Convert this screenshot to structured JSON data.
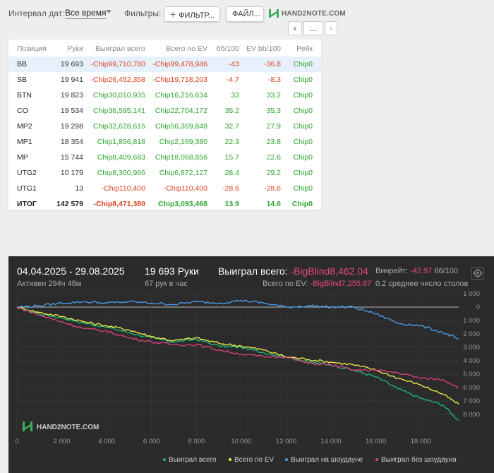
{
  "toolbar": {
    "date_interval_label": "Интервал дат:",
    "date_interval_value": "Все время",
    "filters_label": "Фильтры:",
    "filter_button": "ФИЛЬТР...",
    "file_button": "ФАЙЛ...",
    "brand": "HAND2NOTE.COM",
    "nav_prev": "‹",
    "nav_more": "...",
    "nav_next": "›"
  },
  "table": {
    "headers": [
      "Позиция",
      "Руки",
      "Выиграл всего",
      "Всего по EV",
      "бб/100",
      "EV bb/100",
      "Рейк"
    ],
    "rows": [
      {
        "pos": "BB",
        "hands": "19 693",
        "won": "-Chip99,710,780",
        "ev": "-Chip99,478,946",
        "bb100": "-43",
        "evbb100": "-36.8",
        "rake": "Chip0"
      },
      {
        "pos": "SB",
        "hands": "19 941",
        "won": "-Chip26,452,358",
        "ev": "-Chip19,718,203",
        "bb100": "-4.7",
        "evbb100": "-8.3",
        "rake": "Chip0"
      },
      {
        "pos": "BTN",
        "hands": "19 823",
        "won": "Chip30,010,935",
        "ev": "Chip16,216,634",
        "bb100": "33",
        "evbb100": "33.2",
        "rake": "Chip0"
      },
      {
        "pos": "CO",
        "hands": "19 534",
        "won": "Chip36,595,141",
        "ev": "Chip22,704,172",
        "bb100": "35.2",
        "evbb100": "35.3",
        "rake": "Chip0"
      },
      {
        "pos": "MP2",
        "hands": "19 298",
        "won": "Chip32,628,615",
        "ev": "Chip56,369,848",
        "bb100": "32.7",
        "evbb100": "27.9",
        "rake": "Chip0"
      },
      {
        "pos": "MP1",
        "hands": "18 354",
        "won": "Chip1,856,818",
        "ev": "Chip2,169,380",
        "bb100": "22.3",
        "evbb100": "23.8",
        "rake": "Chip0"
      },
      {
        "pos": "MP",
        "hands": "15 744",
        "won": "Chip8,409,683",
        "ev": "Chip18,068,856",
        "bb100": "15.7",
        "evbb100": "22.6",
        "rake": "Chip0"
      },
      {
        "pos": "UTG2",
        "hands": "10 179",
        "won": "Chip8,300,966",
        "ev": "Chip6,872,127",
        "bb100": "28.4",
        "evbb100": "29.2",
        "rake": "Chip0"
      },
      {
        "pos": "UTG1",
        "hands": "13",
        "won": "-Chip110,400",
        "ev": "-Chip110,400",
        "bb100": "-28.6",
        "evbb100": "-28.6",
        "rake": "Chip0"
      }
    ],
    "total": {
      "pos": "ИТОГ",
      "hands": "142 579",
      "won": "-Chip8,471,380",
      "ev": "Chip3,093,468",
      "bb100": "13.9",
      "evbb100": "14.6",
      "rake": "Chip0"
    }
  },
  "graph": {
    "date_range": "04.04.2025 - 29.08.2025",
    "active": "Активен 294ч 48м",
    "hands": "19 693 Руки",
    "hands_per_hour": "67 рук в час",
    "won_label": "Выиграл всего:",
    "won_value": "-BigBlind8,462.04",
    "ev_label": "Всего по EV:",
    "ev_value": "-BigBlind7,255.87",
    "winrate_label": "Винрейт:",
    "winrate_value": "-42.97",
    "winrate_unit": "66/100",
    "avg_table": "0.2 среднее число столов",
    "gear_icon": "gear-icon",
    "brand": "HAND2NOTE.COM"
  },
  "chart_data": {
    "type": "line",
    "xlim": [
      0,
      19693
    ],
    "ylim": [
      -9000,
      1000
    ],
    "x_ticks": [
      0,
      2000,
      4000,
      6000,
      8000,
      10000,
      12000,
      14000,
      16000,
      18000
    ],
    "x_tick_labels": [
      "0",
      "2 000",
      "4 000",
      "6 000",
      "8 000",
      "10 000",
      "12 000",
      "14 000",
      "16 000",
      "18 000"
    ],
    "y_ticks": [
      1000,
      0,
      -1000,
      -2000,
      -3000,
      -4000,
      -5000,
      -6000,
      -7000,
      -8000
    ],
    "y_tick_labels": [
      "1 000",
      "0",
      "1 000",
      "2 000",
      "3 000",
      "4 000",
      "5 000",
      "6 000",
      "7 000",
      "8 000"
    ],
    "legend_position": "bottom",
    "series": [
      {
        "name": "Выиграл всего",
        "color": "#1db37a",
        "x": [
          0,
          1000,
          2000,
          3000,
          4000,
          5000,
          6000,
          7000,
          8000,
          9000,
          10000,
          11000,
          12000,
          13000,
          14000,
          15000,
          16000,
          17000,
          18000,
          19000,
          19693
        ],
        "y": [
          0,
          -500,
          -800,
          -1200,
          -1500,
          -1900,
          -2300,
          -2600,
          -2400,
          -2900,
          -3000,
          -3400,
          -3700,
          -4100,
          -4300,
          -4700,
          -5200,
          -6100,
          -6800,
          -7300,
          -8462
        ]
      },
      {
        "name": "Всего по EV",
        "color": "#e8e84a",
        "x": [
          0,
          1000,
          2000,
          3000,
          4000,
          5000,
          6000,
          7000,
          8000,
          9000,
          10000,
          11000,
          12000,
          13000,
          14000,
          15000,
          16000,
          17000,
          18000,
          19000,
          19693
        ],
        "y": [
          0,
          -400,
          -700,
          -1100,
          -1400,
          -1700,
          -2200,
          -2500,
          -2300,
          -2700,
          -2900,
          -3200,
          -3700,
          -3900,
          -4100,
          -4300,
          -4700,
          -5300,
          -5800,
          -6500,
          -7256
        ]
      },
      {
        "name": "Выиграл на шоудауне",
        "color": "#4a9be8",
        "x": [
          0,
          1000,
          2000,
          3000,
          4000,
          5000,
          6000,
          7000,
          8000,
          9000,
          10000,
          11000,
          12000,
          13000,
          14000,
          15000,
          16000,
          17000,
          18000,
          19000,
          19693
        ],
        "y": [
          0,
          100,
          300,
          400,
          300,
          400,
          300,
          200,
          400,
          300,
          500,
          300,
          0,
          100,
          0,
          0,
          -500,
          -1200,
          -1400,
          -1900,
          -2400
        ]
      },
      {
        "name": "Выиграл без шоудауна",
        "color": "#d6407a",
        "x": [
          0,
          1000,
          2000,
          3000,
          4000,
          5000,
          6000,
          7000,
          8000,
          9000,
          10000,
          11000,
          12000,
          13000,
          14000,
          15000,
          16000,
          17000,
          18000,
          19000,
          19693
        ],
        "y": [
          0,
          -600,
          -1100,
          -1600,
          -1800,
          -2300,
          -2600,
          -2800,
          -2800,
          -3200,
          -3500,
          -3700,
          -3700,
          -4200,
          -4300,
          -4700,
          -4700,
          -4900,
          -5300,
          -5400,
          -6000
        ]
      }
    ]
  }
}
